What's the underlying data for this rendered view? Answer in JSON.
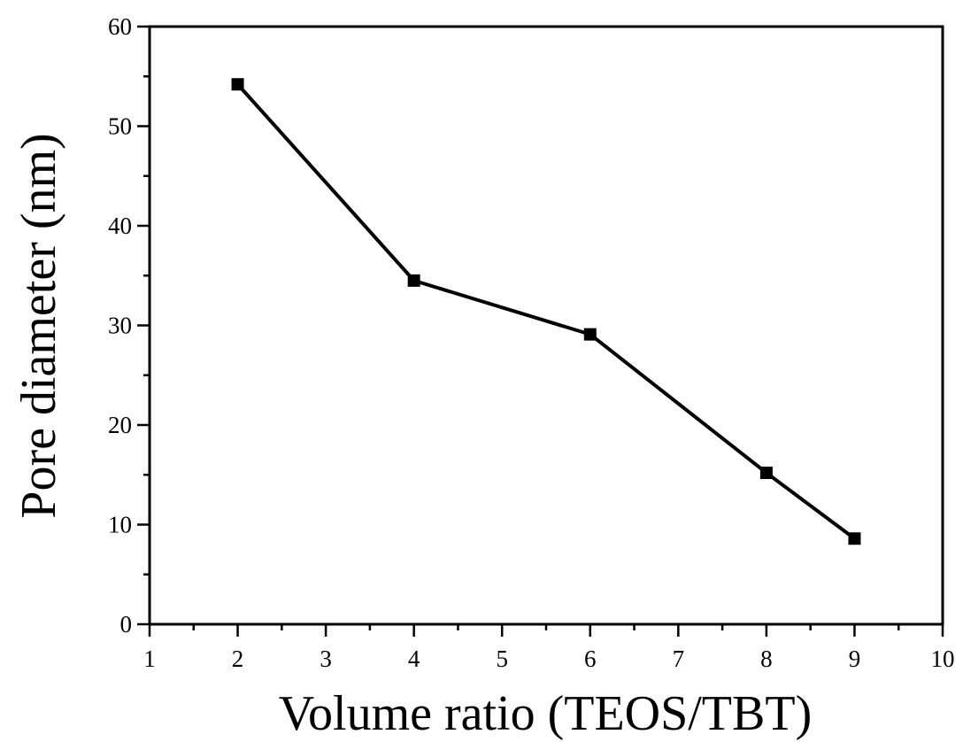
{
  "chart_data": {
    "type": "line",
    "title": "",
    "xlabel": "Volume ratio (TEOS/TBT)",
    "ylabel": "Pore diameter (nm)",
    "xlim": [
      1,
      10
    ],
    "ylim": [
      0,
      60
    ],
    "x_ticks": [
      1,
      2,
      3,
      4,
      5,
      6,
      7,
      8,
      9,
      10
    ],
    "x_tick_labels": [
      "1",
      "2",
      "3",
      "4",
      "5",
      "6",
      "7",
      "8",
      "9",
      "10"
    ],
    "y_ticks": [
      0,
      10,
      20,
      30,
      40,
      50,
      60
    ],
    "y_tick_labels": [
      "0",
      "10",
      "20",
      "30",
      "40",
      "50",
      "60"
    ],
    "grid": false,
    "legend": "none",
    "marker": "square",
    "line_color": "#000000",
    "series": [
      {
        "x": [
          2,
          4,
          6,
          8,
          9
        ],
        "values": [
          54.2,
          34.5,
          29.1,
          15.2,
          8.6
        ]
      }
    ]
  }
}
